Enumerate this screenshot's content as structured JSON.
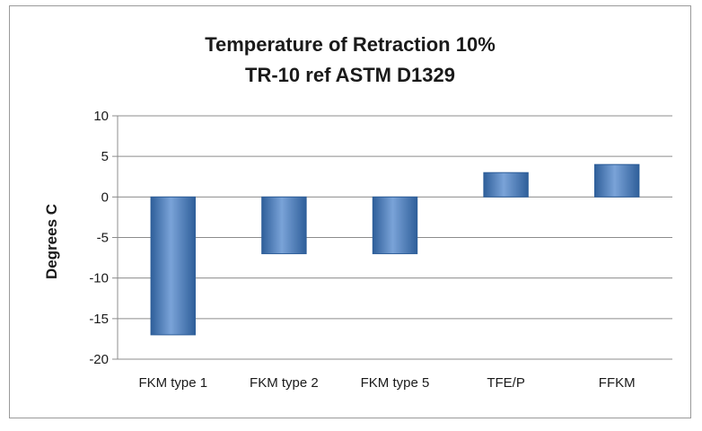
{
  "chart_data": {
    "type": "bar",
    "title_lines": [
      "Temperature of Retraction 10%",
      "TR-10 ref ASTM D1329"
    ],
    "xlabel": "",
    "ylabel": "Degrees C",
    "categories": [
      "FKM type 1",
      "FKM type 2",
      "FKM type 5",
      "TFE/P",
      "FFKM"
    ],
    "values": [
      -17,
      -7,
      -7,
      3,
      4
    ],
    "ylim": [
      -20,
      10
    ],
    "yticks": [
      10,
      5,
      0,
      -5,
      -10,
      -15,
      -20
    ],
    "grid": true,
    "legend": "none",
    "colors": {
      "bar": "#4f81bd",
      "bar_light": "#7aa3d8",
      "bar_dark": "#2f5f9a",
      "grid": "#8c8c8c"
    }
  }
}
